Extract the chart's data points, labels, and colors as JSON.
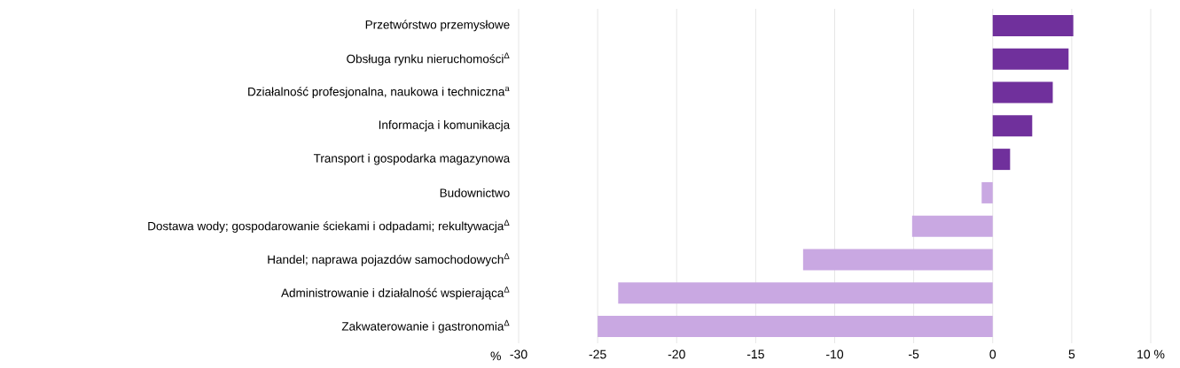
{
  "chart_data": {
    "type": "bar",
    "orientation": "horizontal",
    "categories": [
      "Przetwórstwo przemysłowe",
      "Obsługa rynku nieruchomości$^{Δ}$",
      "Działalność profesjonalna, naukowa i techniczna$^{a}$",
      "Informacja i komunikacja",
      "Transport i gospodarka magazynowa",
      "Budownictwo",
      "Dostawa wody; gospodarowanie ściekami i odpadami; rekultywacja$^{Δ}$",
      "Handel; naprawa pojazdów samochodowych$^{Δ}$",
      "Administrowanie i działalność wspierająca$^{Δ}$",
      "Zakwaterowanie i gastronomia$^{Δ}$"
    ],
    "values": [
      5.1,
      4.8,
      3.8,
      2.5,
      1.1,
      -0.7,
      -5.1,
      -12.0,
      -23.7,
      -25.0
    ],
    "colors": [
      "#70309c",
      "#70309c",
      "#70309c",
      "#70309c",
      "#70309c",
      "#c9a8e2",
      "#c9a8e2",
      "#c9a8e2",
      "#c9a8e2",
      "#c9a8e2"
    ],
    "xlabel": "%",
    "xlim": [
      -30,
      10
    ],
    "xticks": [
      -30,
      -25,
      -20,
      -15,
      -10,
      -5,
      0,
      5,
      {
        "value": 10,
        "label": "10 %"
      }
    ],
    "grid": "x"
  }
}
